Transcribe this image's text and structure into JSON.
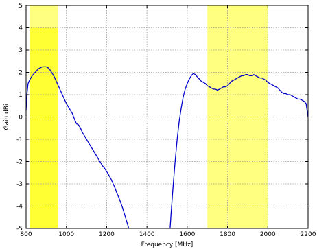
{
  "chart_data": {
    "type": "line",
    "title": "",
    "xlabel": "Frequency [MHz]",
    "ylabel": "Gain dBi",
    "xlim": [
      800,
      2200
    ],
    "ylim": [
      -5,
      5
    ],
    "x_ticks": [
      800,
      1000,
      1200,
      1400,
      1600,
      1800,
      2000,
      2200
    ],
    "y_ticks": [
      -5,
      -4,
      -3,
      -2,
      -1,
      0,
      1,
      2,
      3,
      4,
      5
    ],
    "grid": true,
    "line_color": "#0000cc",
    "highlight_bands": [
      {
        "x_range": [
          820,
          960
        ],
        "color": "#ffff80"
      },
      {
        "x_range": [
          820,
          960
        ],
        "y_range": [
          -5,
          4
        ],
        "color": "#ffff33"
      },
      {
        "x_range": [
          1700,
          2000
        ],
        "color": "#ffff80"
      }
    ],
    "series": [
      {
        "segments": [
          {
            "x": [
              800,
              805,
              810,
              820,
              830,
              840,
              850,
              860,
              870,
              880,
              890,
              900,
              910,
              920,
              930,
              940,
              950,
              960,
              970,
              980,
              990,
              1000,
              1010,
              1020,
              1030,
              1040,
              1050,
              1060,
              1070,
              1080,
              1090,
              1100,
              1110,
              1120,
              1130,
              1140,
              1150,
              1160,
              1170,
              1180,
              1190,
              1200,
              1210,
              1220,
              1230,
              1240,
              1250,
              1260,
              1270,
              1280,
              1290,
              1300,
              1310
            ],
            "y": [
              0.3,
              1.1,
              1.5,
              1.7,
              1.85,
              1.95,
              2.05,
              2.15,
              2.2,
              2.25,
              2.25,
              2.25,
              2.2,
              2.1,
              1.95,
              1.8,
              1.6,
              1.4,
              1.2,
              1.0,
              0.8,
              0.6,
              0.45,
              0.3,
              0.15,
              -0.1,
              -0.3,
              -0.35,
              -0.5,
              -0.7,
              -0.85,
              -1.0,
              -1.15,
              -1.3,
              -1.45,
              -1.6,
              -1.75,
              -1.9,
              -2.05,
              -2.2,
              -2.3,
              -2.45,
              -2.6,
              -2.75,
              -2.95,
              -3.15,
              -3.4,
              -3.6,
              -3.85,
              -4.1,
              -4.4,
              -4.7,
              -5.0
            ]
          },
          {
            "x": [
              1515,
              1520,
              1530,
              1540,
              1550,
              1560,
              1570,
              1580,
              1590,
              1600,
              1610,
              1620,
              1630,
              1640,
              1650,
              1660,
              1670,
              1680,
              1690,
              1700,
              1710,
              1720,
              1730,
              1740,
              1750,
              1760,
              1770,
              1780,
              1790,
              1800,
              1810,
              1820,
              1830,
              1840,
              1850,
              1860,
              1870,
              1880,
              1890,
              1900,
              1910,
              1920,
              1930,
              1940,
              1950,
              1960,
              1970,
              1980,
              1990,
              2000,
              2010,
              2020,
              2030,
              2040,
              2050,
              2060,
              2070,
              2080,
              2090,
              2100,
              2110,
              2120,
              2130,
              2140,
              2150,
              2160,
              2170,
              2180,
              2190,
              2200
            ],
            "y": [
              -5.0,
              -4.3,
              -3.1,
              -2.0,
              -1.0,
              -0.2,
              0.4,
              0.9,
              1.25,
              1.5,
              1.7,
              1.85,
              1.95,
              1.9,
              1.8,
              1.7,
              1.6,
              1.55,
              1.5,
              1.4,
              1.35,
              1.3,
              1.25,
              1.25,
              1.2,
              1.25,
              1.3,
              1.35,
              1.35,
              1.4,
              1.5,
              1.6,
              1.65,
              1.7,
              1.75,
              1.8,
              1.85,
              1.85,
              1.9,
              1.9,
              1.85,
              1.85,
              1.9,
              1.85,
              1.8,
              1.75,
              1.75,
              1.7,
              1.65,
              1.55,
              1.5,
              1.45,
              1.4,
              1.35,
              1.3,
              1.2,
              1.1,
              1.05,
              1.05,
              1.0,
              1.0,
              0.95,
              0.9,
              0.85,
              0.8,
              0.8,
              0.75,
              0.7,
              0.6,
              0.0
            ]
          }
        ]
      }
    ]
  }
}
